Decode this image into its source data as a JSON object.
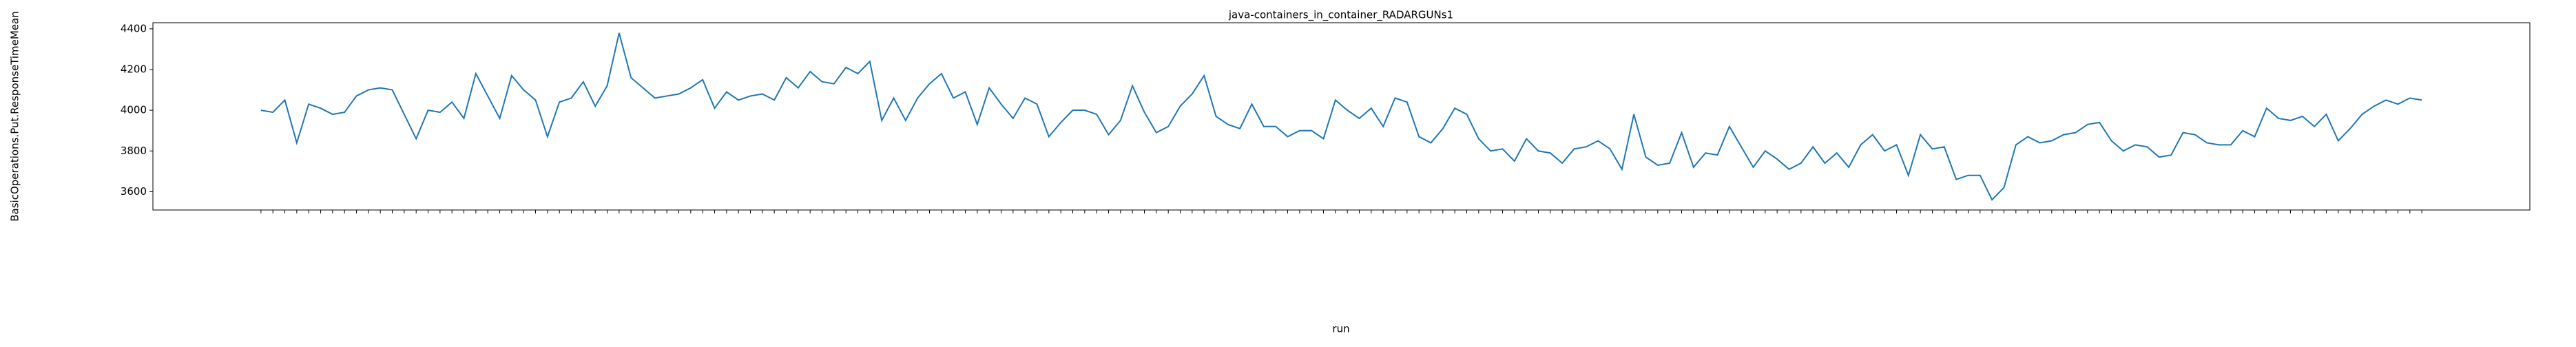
{
  "chart_data": {
    "type": "line",
    "title": "java-containers_in_container_RADARGUNs1",
    "xlabel": "run",
    "ylabel": "BasicOperations.Put.ResponseTimeMean",
    "categories": [
      null,
      null,
      null,
      null,
      null,
      null,
      null,
      null,
      null,
      null,
      null,
      null,
      null,
      null,
      null,
      null,
      null,
      null,
      null,
      null,
      null,
      null,
      null,
      null,
      null,
      null,
      null,
      null,
      null,
      null,
      null,
      null,
      null,
      null,
      null,
      null,
      null,
      null,
      null,
      null,
      null,
      null,
      null,
      null,
      null,
      null,
      null,
      null,
      null,
      null,
      null,
      null,
      null,
      null,
      null,
      null,
      null,
      null,
      null,
      null,
      null,
      null,
      null,
      null,
      null,
      null,
      null,
      null,
      null,
      null,
      null,
      null,
      null,
      null,
      null,
      null,
      null,
      null,
      null,
      null,
      null,
      null,
      null,
      null,
      null,
      null,
      null,
      null,
      null,
      null,
      null,
      null,
      null,
      null,
      null,
      null,
      null,
      null,
      null,
      null,
      null,
      null,
      null,
      null,
      null,
      null,
      null,
      null,
      null,
      null,
      null,
      null,
      null,
      null,
      null,
      null,
      null,
      null,
      null,
      null,
      null,
      null,
      null,
      null,
      null,
      null,
      null,
      null,
      null,
      null,
      null,
      null,
      null,
      null,
      null,
      null,
      null,
      null,
      null,
      null,
      null,
      null,
      null,
      null,
      null,
      null,
      null,
      null,
      null,
      null,
      null,
      null,
      null,
      null,
      null,
      null,
      null,
      null,
      null,
      null,
      null,
      null,
      null,
      null,
      null,
      null,
      null,
      null,
      null,
      null,
      null,
      null,
      null,
      null,
      null,
      null,
      null,
      null,
      null,
      null,
      null,
      null
    ],
    "series": [
      {
        "name": "BasicOperations.Put.ResponseTimeMean",
        "color": "#1f77b4",
        "values": [
          4000,
          3990,
          4050,
          3840,
          4030,
          4010,
          3980,
          3990,
          4070,
          4100,
          4110,
          4100,
          3980,
          3860,
          4000,
          3990,
          4040,
          3960,
          4180,
          4070,
          3960,
          4170,
          4100,
          4050,
          3870,
          4040,
          4060,
          4140,
          4020,
          4120,
          4380,
          4160,
          4110,
          4060,
          4070,
          4080,
          4110,
          4150,
          4010,
          4090,
          4050,
          4070,
          4080,
          4050,
          4160,
          4110,
          4190,
          4140,
          4130,
          4210,
          4180,
          4240,
          3950,
          4060,
          3950,
          4060,
          4130,
          4180,
          4060,
          4090,
          3930,
          4110,
          4030,
          3960,
          4060,
          4030,
          3870,
          3940,
          4000,
          4000,
          3980,
          3880,
          3950,
          4120,
          3990,
          3890,
          3920,
          4020,
          4080,
          4170,
          3970,
          3930,
          3910,
          4030,
          3920,
          3920,
          3870,
          3900,
          3900,
          3860,
          4050,
          4000,
          3960,
          4010,
          3920,
          4060,
          4040,
          3870,
          3840,
          3910,
          4010,
          3980,
          3860,
          3800,
          3810,
          3750,
          3860,
          3800,
          3790,
          3740,
          3810,
          3820,
          3850,
          3810,
          3710,
          3980,
          3770,
          3730,
          3740,
          3890,
          3720,
          3790,
          3780,
          3920,
          3820,
          3720,
          3800,
          3760,
          3710,
          3740,
          3820,
          3740,
          3790,
          3720,
          3830,
          3880,
          3800,
          3830,
          3680,
          3880,
          3810,
          3820,
          3660,
          3680,
          3680,
          3560,
          3620,
          3830,
          3870,
          3840,
          3850,
          3880,
          3890,
          3930,
          3940,
          3850,
          3800,
          3830,
          3820,
          3770,
          3780,
          3890,
          3880,
          3840,
          3830,
          3830,
          3900,
          3870,
          4010,
          3960,
          3950,
          3970,
          3920,
          3980,
          3850,
          3910,
          3980,
          4020,
          4050,
          4030,
          4060,
          4050
        ]
      }
    ],
    "ylim": [
      3510,
      4430
    ],
    "yticks": [
      3600,
      3800,
      4000,
      4200,
      4400
    ],
    "grid": false
  }
}
